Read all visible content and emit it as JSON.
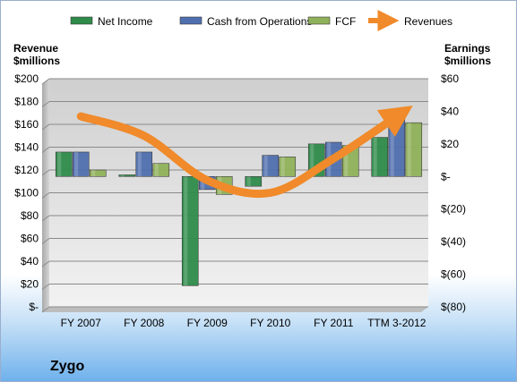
{
  "chart_data": {
    "type": "bar",
    "title": "Zygo",
    "categories": [
      "FY 2007",
      "FY 2008",
      "FY 2009",
      "FY 2010",
      "FY 2011",
      "TTM 3-2012"
    ],
    "left_axis": {
      "title_line1": "Revenue",
      "title_line2": "$millions",
      "range": [
        0,
        200
      ],
      "ticks": [
        0,
        20,
        40,
        60,
        80,
        100,
        120,
        140,
        160,
        180,
        200
      ],
      "tick_labels": [
        "$-",
        "$20",
        "$40",
        "$60",
        "$80",
        "$100",
        "$120",
        "$140",
        "$160",
        "$180",
        "$200"
      ]
    },
    "right_axis": {
      "title_line1": "Earnings",
      "title_line2": "$millions",
      "range": [
        -80,
        60
      ],
      "ticks": [
        -80,
        -60,
        -40,
        -20,
        0,
        20,
        40,
        60
      ],
      "tick_labels": [
        "$(80)",
        "$(60)",
        "$(40)",
        "$(20)",
        "$-",
        "$20",
        "$40",
        "$60"
      ]
    },
    "series": [
      {
        "name": "Net Income",
        "axis": "right",
        "kind": "bar",
        "color": "#2e8b4a",
        "values": [
          15,
          1,
          -67,
          -6,
          20,
          24
        ]
      },
      {
        "name": "Cash from Operations",
        "axis": "right",
        "kind": "bar",
        "color": "#4f6fae",
        "values": [
          15,
          15,
          -8,
          13,
          21,
          39
        ]
      },
      {
        "name": "FCF",
        "axis": "right",
        "kind": "bar",
        "color": "#8fb15a",
        "values": [
          4,
          8,
          -11,
          12,
          19,
          33
        ]
      },
      {
        "name": "Revenues",
        "axis": "left",
        "kind": "line",
        "color": "#f08a2a",
        "values": [
          167,
          150,
          111,
          100,
          130,
          167
        ]
      }
    ],
    "legend": "top",
    "grid": true
  }
}
